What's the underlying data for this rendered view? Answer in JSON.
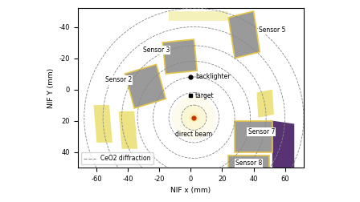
{
  "chart_data": {
    "type": "map",
    "xlabel": "NIF x (mm)",
    "ylabel": "NIF Y (mm)",
    "xlim": [
      -72,
      72
    ],
    "ylim": [
      50,
      -52
    ],
    "xticks": [
      -60,
      -40,
      -20,
      0,
      20,
      40,
      60
    ],
    "yticks": [
      -40,
      -20,
      0,
      20,
      40
    ],
    "legend": "lower left",
    "rings": {
      "name": "CeO2 diffraction",
      "color": "#888888",
      "line_style": "dashed",
      "center": [
        2,
        18
      ],
      "radii": [
        8,
        16,
        26,
        36,
        46,
        58,
        70
      ]
    },
    "points": [
      {
        "name": "backlighter",
        "x": 0,
        "y": -8,
        "marker": "circle",
        "color": "#000000"
      },
      {
        "name": "target",
        "x": 0,
        "y": 4,
        "marker": "square",
        "color": "#000000"
      },
      {
        "name": "direct beam",
        "x": 2,
        "y": 18,
        "marker": "circle",
        "color": "#cc3300"
      }
    ],
    "panels": [
      {
        "color": "#eadf70",
        "corners": [
          [
            -62,
            10
          ],
          [
            -52,
            10
          ],
          [
            -50,
            34
          ],
          [
            -60,
            34
          ]
        ]
      },
      {
        "color": "#eadf70",
        "corners": [
          [
            -46,
            14
          ],
          [
            -36,
            14
          ],
          [
            -34,
            38
          ],
          [
            -44,
            38
          ]
        ]
      },
      {
        "color": "#eadf70",
        "corners": [
          [
            42,
            2
          ],
          [
            52,
            0
          ],
          [
            53,
            16
          ],
          [
            43,
            18
          ]
        ]
      },
      {
        "color": "#f3efb0",
        "corners": [
          [
            -14,
            -50
          ],
          [
            24,
            -50
          ],
          [
            24,
            -44
          ],
          [
            -14,
            -44
          ]
        ]
      },
      {
        "color": "#3b0f5a",
        "corners": [
          [
            52,
            20
          ],
          [
            66,
            22
          ],
          [
            66,
            56
          ],
          [
            52,
            56
          ]
        ]
      }
    ],
    "sensors": [
      {
        "name": "Sensor 2",
        "corners": [
          [
            -42,
            -10
          ],
          [
            -22,
            -16
          ],
          [
            -16,
            6
          ],
          [
            -36,
            12
          ]
        ],
        "label_x": -46,
        "label_y": -6
      },
      {
        "name": "Sensor 3",
        "corners": [
          [
            -18,
            -30
          ],
          [
            2,
            -32
          ],
          [
            4,
            -12
          ],
          [
            -16,
            -10
          ]
        ],
        "label_x": -22,
        "label_y": -25
      },
      {
        "name": "Sensor 5",
        "corners": [
          [
            24,
            -46
          ],
          [
            40,
            -50
          ],
          [
            44,
            -24
          ],
          [
            28,
            -20
          ]
        ],
        "label_x": 52,
        "label_y": -38
      },
      {
        "name": "Sensor 7",
        "corners": [
          [
            28,
            20
          ],
          [
            52,
            20
          ],
          [
            52,
            40
          ],
          [
            28,
            40
          ]
        ],
        "label_x": 45,
        "label_y": 27
      },
      {
        "name": "Sensor 8",
        "corners": [
          [
            24,
            42
          ],
          [
            50,
            42
          ],
          [
            50,
            56
          ],
          [
            24,
            56
          ]
        ],
        "label_x": 37,
        "label_y": 47
      }
    ]
  }
}
